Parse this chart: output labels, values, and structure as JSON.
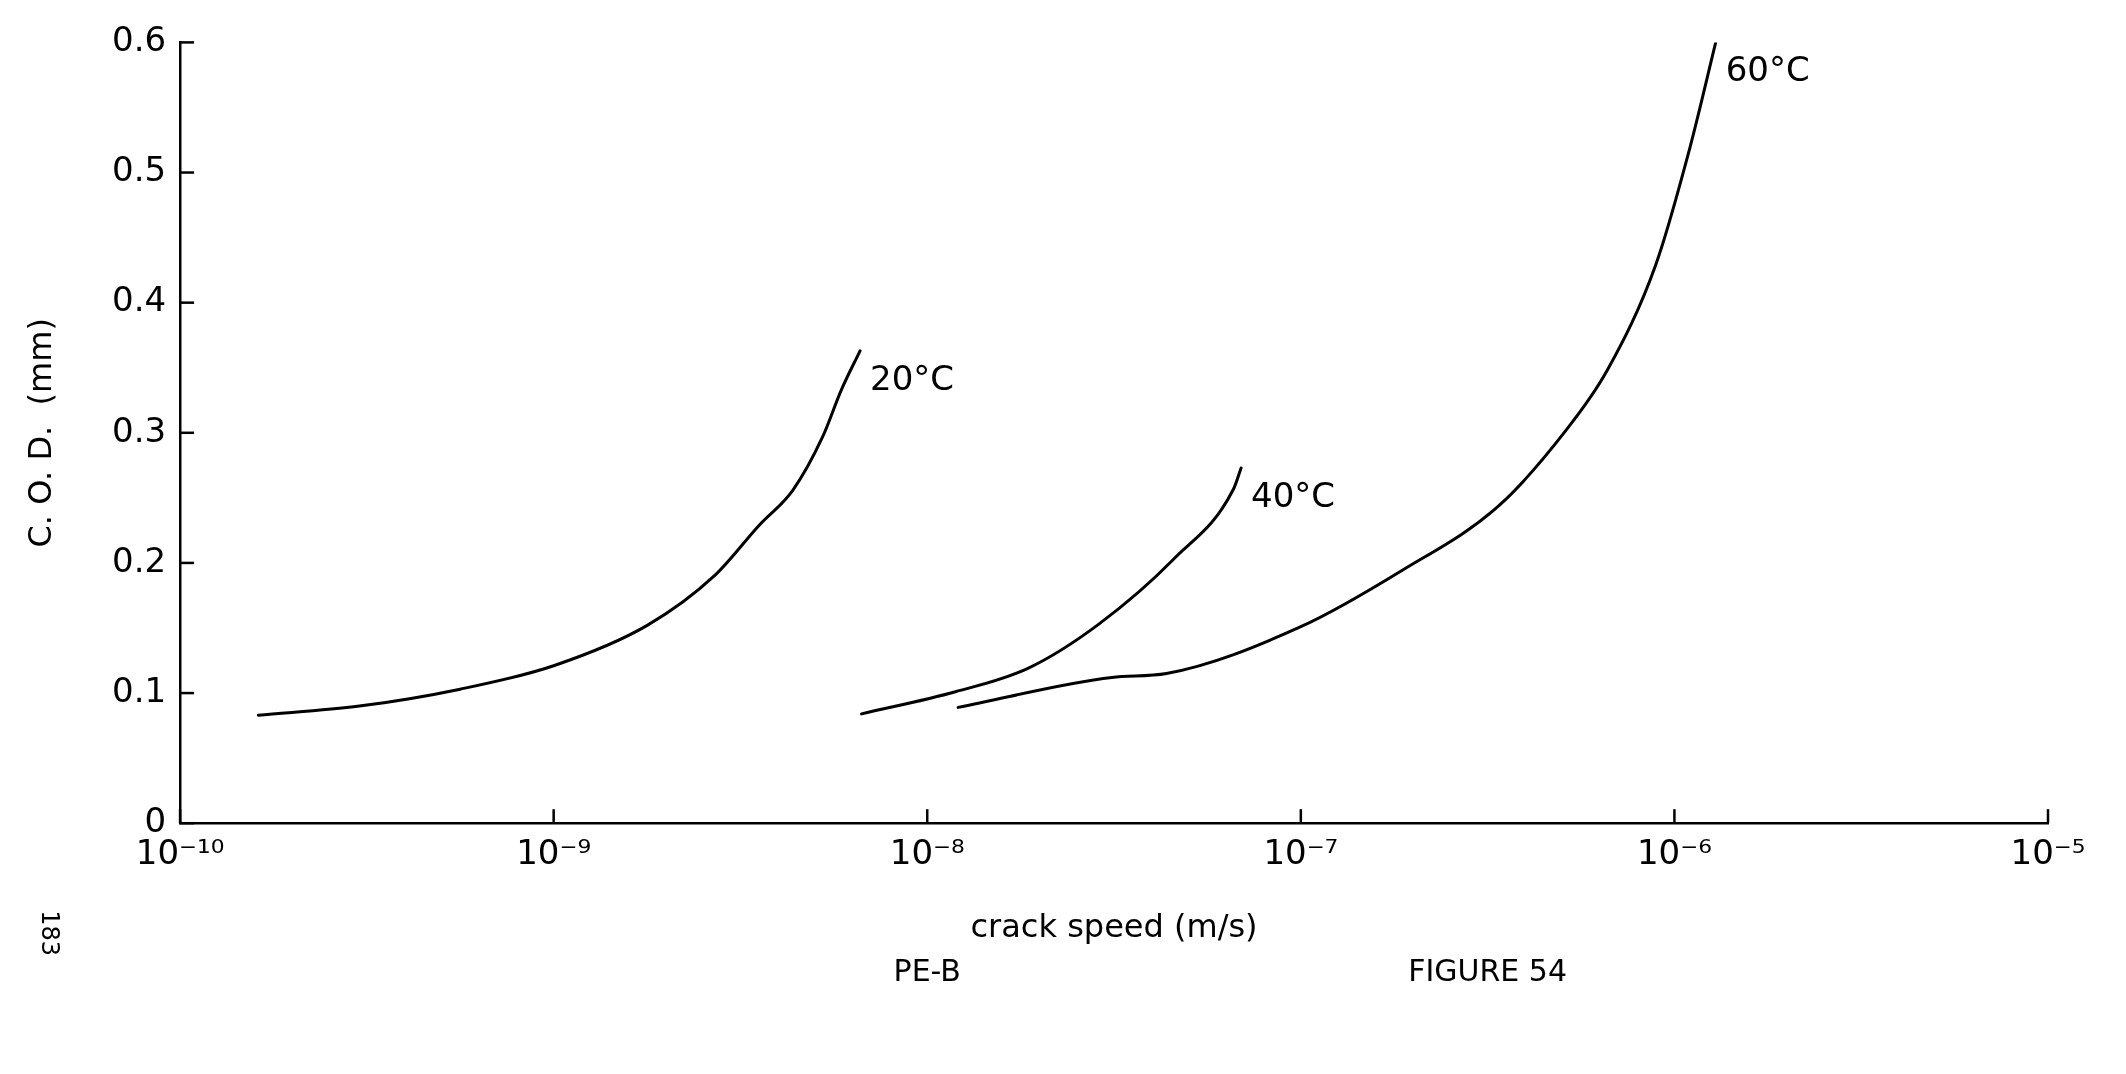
{
  "chart_data": {
    "type": "line",
    "xlabel": "crack speed (m/s)",
    "ylabel": "C. O. D.  (mm)",
    "log": "x",
    "legend": false,
    "marker": "none",
    "line_style": "solid",
    "xlim": [
      1e-10,
      1e-05
    ],
    "xticks": [
      {
        "value": 1e-10,
        "label": "10⁻¹⁰"
      },
      {
        "value": 1e-09,
        "label": "10⁻⁹"
      },
      {
        "value": 1e-08,
        "label": "10⁻⁸"
      },
      {
        "value": 1e-07,
        "label": "10⁻⁷"
      },
      {
        "value": 1e-06,
        "label": "10⁻⁶"
      },
      {
        "value": 1e-05,
        "label": "10⁻⁵"
      }
    ],
    "ylim": [
      0,
      0.6
    ],
    "yticks": [
      0,
      0.1,
      0.2,
      0.3,
      0.4,
      0.5,
      0.6
    ],
    "series": [
      {
        "name": "20°C",
        "color": "#000000",
        "x": [
          1.62e-10,
          3.02e-10,
          5.62e-10,
          1e-09,
          1.78e-09,
          2.69e-09,
          3.55e-09,
          4.37e-09,
          5.25e-09,
          5.89e-09,
          6.61e-09
        ],
        "values": [
          0.083,
          0.09,
          0.103,
          0.121,
          0.152,
          0.19,
          0.229,
          0.256,
          0.297,
          0.333,
          0.363
        ]
      },
      {
        "name": "40°C",
        "color": "#000000",
        "x": [
          6.67e-09,
          1.19e-08,
          1.86e-08,
          2.88e-08,
          4.57e-08,
          6.61e-08,
          6.92e-08
        ],
        "values": [
          0.084,
          0.101,
          0.119,
          0.153,
          0.203,
          0.257,
          0.273
        ]
      },
      {
        "name": "60°C",
        "color": "#000000",
        "x": [
          1.21e-08,
          3.12e-08,
          4.37e-08,
          1e-07,
          1.86e-07,
          3.39e-07,
          5.13e-07,
          6.61e-07,
          8.91e-07,
          1.1e-06,
          1.29e-06
        ],
        "values": [
          0.089,
          0.112,
          0.115,
          0.151,
          0.194,
          0.244,
          0.302,
          0.348,
          0.429,
          0.519,
          0.6
        ]
      }
    ],
    "annotations": [
      "PE-B",
      "FIGURE 54",
      "183"
    ]
  }
}
